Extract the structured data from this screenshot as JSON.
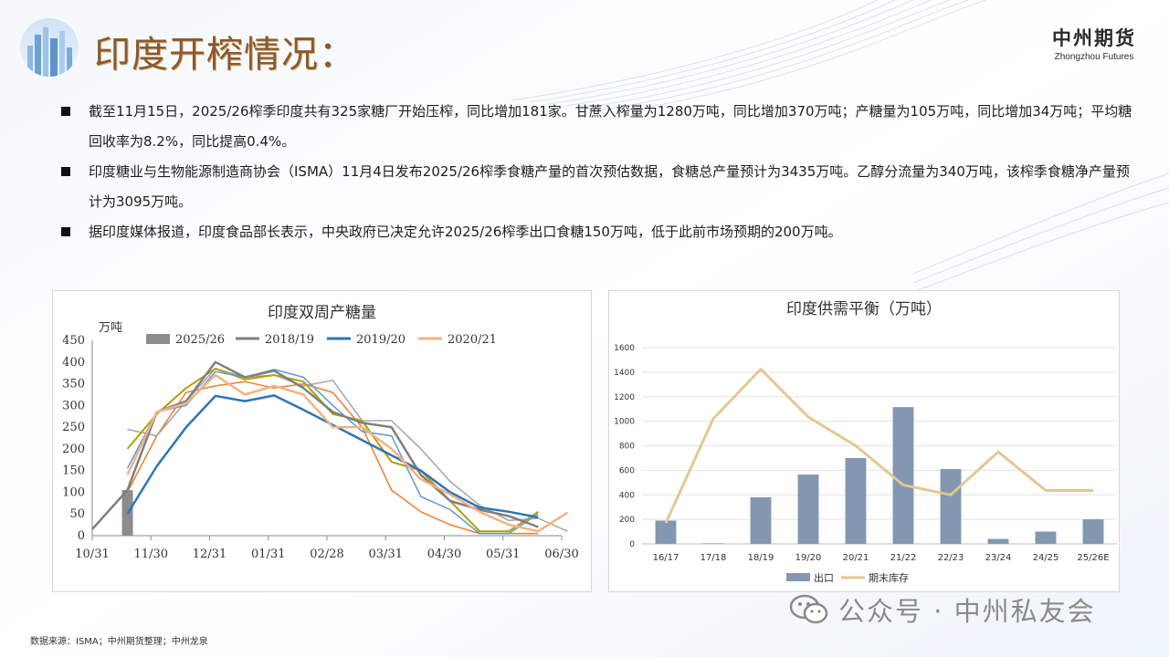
{
  "header": {
    "title": "印度开榨情况：",
    "brand_cn": "中州期货",
    "brand_en": "Zhongzhou Futures"
  },
  "bullets": [
    "截至11月15日，2025/26榨季印度共有325家糖厂开始压榨，同比增加181家。甘蔗入榨量为1280万吨，同比增加370万吨；产糖量为105万吨，同比增加34万吨；平均糖回收率为8.2%，同比提高0.4%。",
    "印度糖业与生物能源制造商协会（ISMA）11月4日发布2025/26榨季食糖产量的首次预估数据，食糖总产量预计为3435万吨。乙醇分流量为340万吨，该榨季食糖净产量预计为3095万吨。",
    "据印度媒体报道，印度食品部长表示，中央政府已决定允许2025/26榨季出口食糖150万吨，低于此前市场预期的200万吨。"
  ],
  "footer": {
    "source": "数据来源：ISMA；中州期货整理；中州龙泉",
    "watermark": "公众号 · 中州私友会"
  },
  "chart_data": [
    {
      "type": "line",
      "title": "印度双周产糖量",
      "ylabel": "万吨",
      "ylim": [
        0,
        450
      ],
      "yticks": [
        0,
        50,
        100,
        150,
        200,
        250,
        300,
        350,
        400,
        450
      ],
      "xticks": [
        "10/31",
        "11/30",
        "12/31",
        "01/31",
        "02/28",
        "03/31",
        "04/30",
        "05/31",
        "06/30"
      ],
      "legend": [
        "2025/26",
        "2018/19",
        "2019/20",
        "2020/21"
      ],
      "bar_series": {
        "name": "2025/26",
        "color": "#8c8c8c",
        "x": 0.6,
        "value": 105
      },
      "series": [
        {
          "name": "2018/19",
          "color": "#7f7f7f",
          "width": 2.5,
          "x": [
            0,
            0.6,
            1.1,
            1.6,
            2.1,
            2.6,
            3.1,
            3.6,
            4.1,
            4.6,
            5.1,
            5.6,
            6.1,
            6.6,
            7.1,
            7.6
          ],
          "y": [
            15,
            105,
            285,
            310,
            400,
            365,
            380,
            340,
            285,
            260,
            250,
            140,
            80,
            60,
            45,
            20
          ]
        },
        {
          "name": "2019/20",
          "color": "#2e75b6",
          "width": 2.5,
          "x": [
            0.6,
            1.1,
            1.6,
            2.1,
            2.6,
            3.1,
            3.6,
            4.1,
            4.6,
            5.1,
            5.6,
            6.1,
            6.6,
            7.1,
            7.6
          ],
          "y": [
            50,
            160,
            250,
            322,
            310,
            323,
            290,
            255,
            220,
            185,
            150,
            100,
            65,
            55,
            42
          ]
        },
        {
          "name": "2020/21",
          "color": "#f4b183",
          "width": 2.5,
          "x": [
            0.6,
            1.1,
            1.6,
            2.1,
            2.6,
            3.1,
            3.6,
            4.1,
            4.6,
            5.1,
            5.6,
            6.1,
            6.6,
            7.1,
            7.6,
            8.1
          ],
          "y": [
            140,
            285,
            305,
            370,
            325,
            345,
            325,
            250,
            250,
            200,
            130,
            95,
            55,
            25,
            10,
            53
          ]
        },
        {
          "name": "",
          "color": "#ed7d31",
          "width": 1.5,
          "x": [
            0.6,
            1.1,
            1.6,
            2.1,
            2.6,
            3.1,
            3.6,
            4.1,
            4.6,
            5.1,
            5.6,
            6.1,
            6.6,
            7.1,
            7.6
          ],
          "y": [
            100,
            230,
            330,
            345,
            355,
            340,
            350,
            330,
            250,
            105,
            55,
            25,
            5,
            5,
            5
          ]
        },
        {
          "name": "",
          "color": "#a5a5a5",
          "width": 1.5,
          "x": [
            0.6,
            1.1,
            1.6,
            2.1,
            2.6,
            3.1,
            3.6,
            4.1,
            4.6,
            5.1,
            5.6,
            6.1,
            6.6,
            7.1,
            7.6,
            8.1
          ],
          "y": [
            245,
            230,
            310,
            385,
            365,
            370,
            345,
            358,
            265,
            265,
            200,
            125,
            70,
            35,
            40,
            10
          ]
        },
        {
          "name": "",
          "color": "#b4a000",
          "width": 2,
          "x": [
            0.6,
            1.1,
            1.6,
            2.1,
            2.6,
            3.1,
            3.6,
            4.1,
            4.6,
            5.1,
            5.6,
            6.1,
            6.6,
            7.1,
            7.6
          ],
          "y": [
            200,
            280,
            340,
            385,
            360,
            370,
            355,
            280,
            265,
            170,
            150,
            80,
            10,
            10,
            55
          ]
        },
        {
          "name": "",
          "color": "#5b9bd5",
          "width": 1.5,
          "x": [
            0.6,
            1.1,
            1.6,
            2.1,
            2.6,
            3.1,
            3.6,
            4.1,
            4.6,
            5.1,
            5.6,
            6.1,
            6.6,
            7.1,
            7.6
          ],
          "y": [
            155,
            285,
            300,
            378,
            365,
            383,
            365,
            300,
            240,
            230,
            90,
            60,
            5,
            5,
            50
          ]
        }
      ]
    },
    {
      "type": "bar",
      "title": "印度供需平衡（万吨）",
      "categories": [
        "16/17",
        "17/18",
        "18/19",
        "19/20",
        "20/21",
        "21/22",
        "22/23",
        "23/24",
        "24/25",
        "25/26E"
      ],
      "ylim": [
        0,
        1600
      ],
      "yticks": [
        0,
        200,
        400,
        600,
        800,
        1000,
        1200,
        1400,
        1600
      ],
      "series": [
        {
          "name": "出口",
          "type": "bar",
          "color": "#8497b0",
          "values": [
            190,
            5,
            380,
            565,
            700,
            1115,
            610,
            40,
            100,
            200
          ]
        },
        {
          "name": "期末库存",
          "type": "line",
          "color": "#e2c892",
          "values": [
            170,
            1020,
            1425,
            1035,
            800,
            480,
            400,
            750,
            435,
            435
          ]
        }
      ]
    }
  ]
}
